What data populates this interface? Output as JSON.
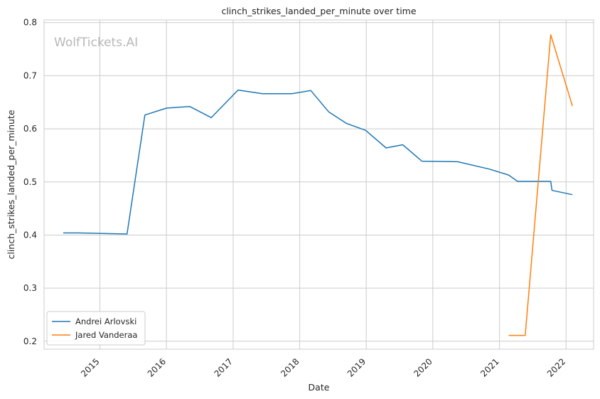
{
  "chart_data": {
    "type": "line",
    "title": "clinch_strikes_landed_per_minute over time",
    "xlabel": "Date",
    "ylabel": "clinch_strikes_landed_per_minute",
    "watermark": "WolfTickets.AI",
    "xlim": [
      "2014-03-01",
      "2022-06-01"
    ],
    "ylim": [
      0.185,
      0.805
    ],
    "x_ticks": [
      "2015",
      "2016",
      "2017",
      "2018",
      "2019",
      "2020",
      "2021",
      "2022"
    ],
    "y_ticks": [
      0.2,
      0.3,
      0.4,
      0.5,
      0.6,
      0.7,
      0.8
    ],
    "y_tick_labels": [
      "0.2",
      "0.3",
      "0.4",
      "0.5",
      "0.6",
      "0.7",
      "0.8"
    ],
    "grid": true,
    "legend_position": "lower-left",
    "series": [
      {
        "name": "Andrei Arlovski",
        "color": "#1f77b4",
        "points": [
          {
            "x": "2014-06-14",
            "y": 0.404
          },
          {
            "x": "2014-09-05",
            "y": 0.404
          },
          {
            "x": "2015-05-30",
            "y": 0.402
          },
          {
            "x": "2015-09-05",
            "y": 0.626
          },
          {
            "x": "2016-01-02",
            "y": 0.639
          },
          {
            "x": "2016-05-08",
            "y": 0.642
          },
          {
            "x": "2016-09-03",
            "y": 0.621
          },
          {
            "x": "2017-01-28",
            "y": 0.673
          },
          {
            "x": "2017-06-11",
            "y": 0.666
          },
          {
            "x": "2017-11-19",
            "y": 0.666
          },
          {
            "x": "2018-03-03",
            "y": 0.672
          },
          {
            "x": "2018-06-09",
            "y": 0.632
          },
          {
            "x": "2018-09-15",
            "y": 0.61
          },
          {
            "x": "2018-12-29",
            "y": 0.597
          },
          {
            "x": "2019-04-20",
            "y": 0.564
          },
          {
            "x": "2019-07-20",
            "y": 0.57
          },
          {
            "x": "2019-11-02",
            "y": 0.539
          },
          {
            "x": "2020-05-16",
            "y": 0.538
          },
          {
            "x": "2020-11-07",
            "y": 0.524
          },
          {
            "x": "2021-02-20",
            "y": 0.513
          },
          {
            "x": "2021-04-10",
            "y": 0.501
          },
          {
            "x": "2021-10-09",
            "y": 0.501
          },
          {
            "x": "2021-10-16",
            "y": 0.484
          },
          {
            "x": "2022-02-05",
            "y": 0.476
          }
        ]
      },
      {
        "name": "Jared Vanderaa",
        "color": "#ff7f0e",
        "points": [
          {
            "x": "2021-02-20",
            "y": 0.211
          },
          {
            "x": "2021-05-22",
            "y": 0.211
          },
          {
            "x": "2021-10-09",
            "y": 0.777
          },
          {
            "x": "2022-02-05",
            "y": 0.643
          }
        ]
      }
    ]
  }
}
